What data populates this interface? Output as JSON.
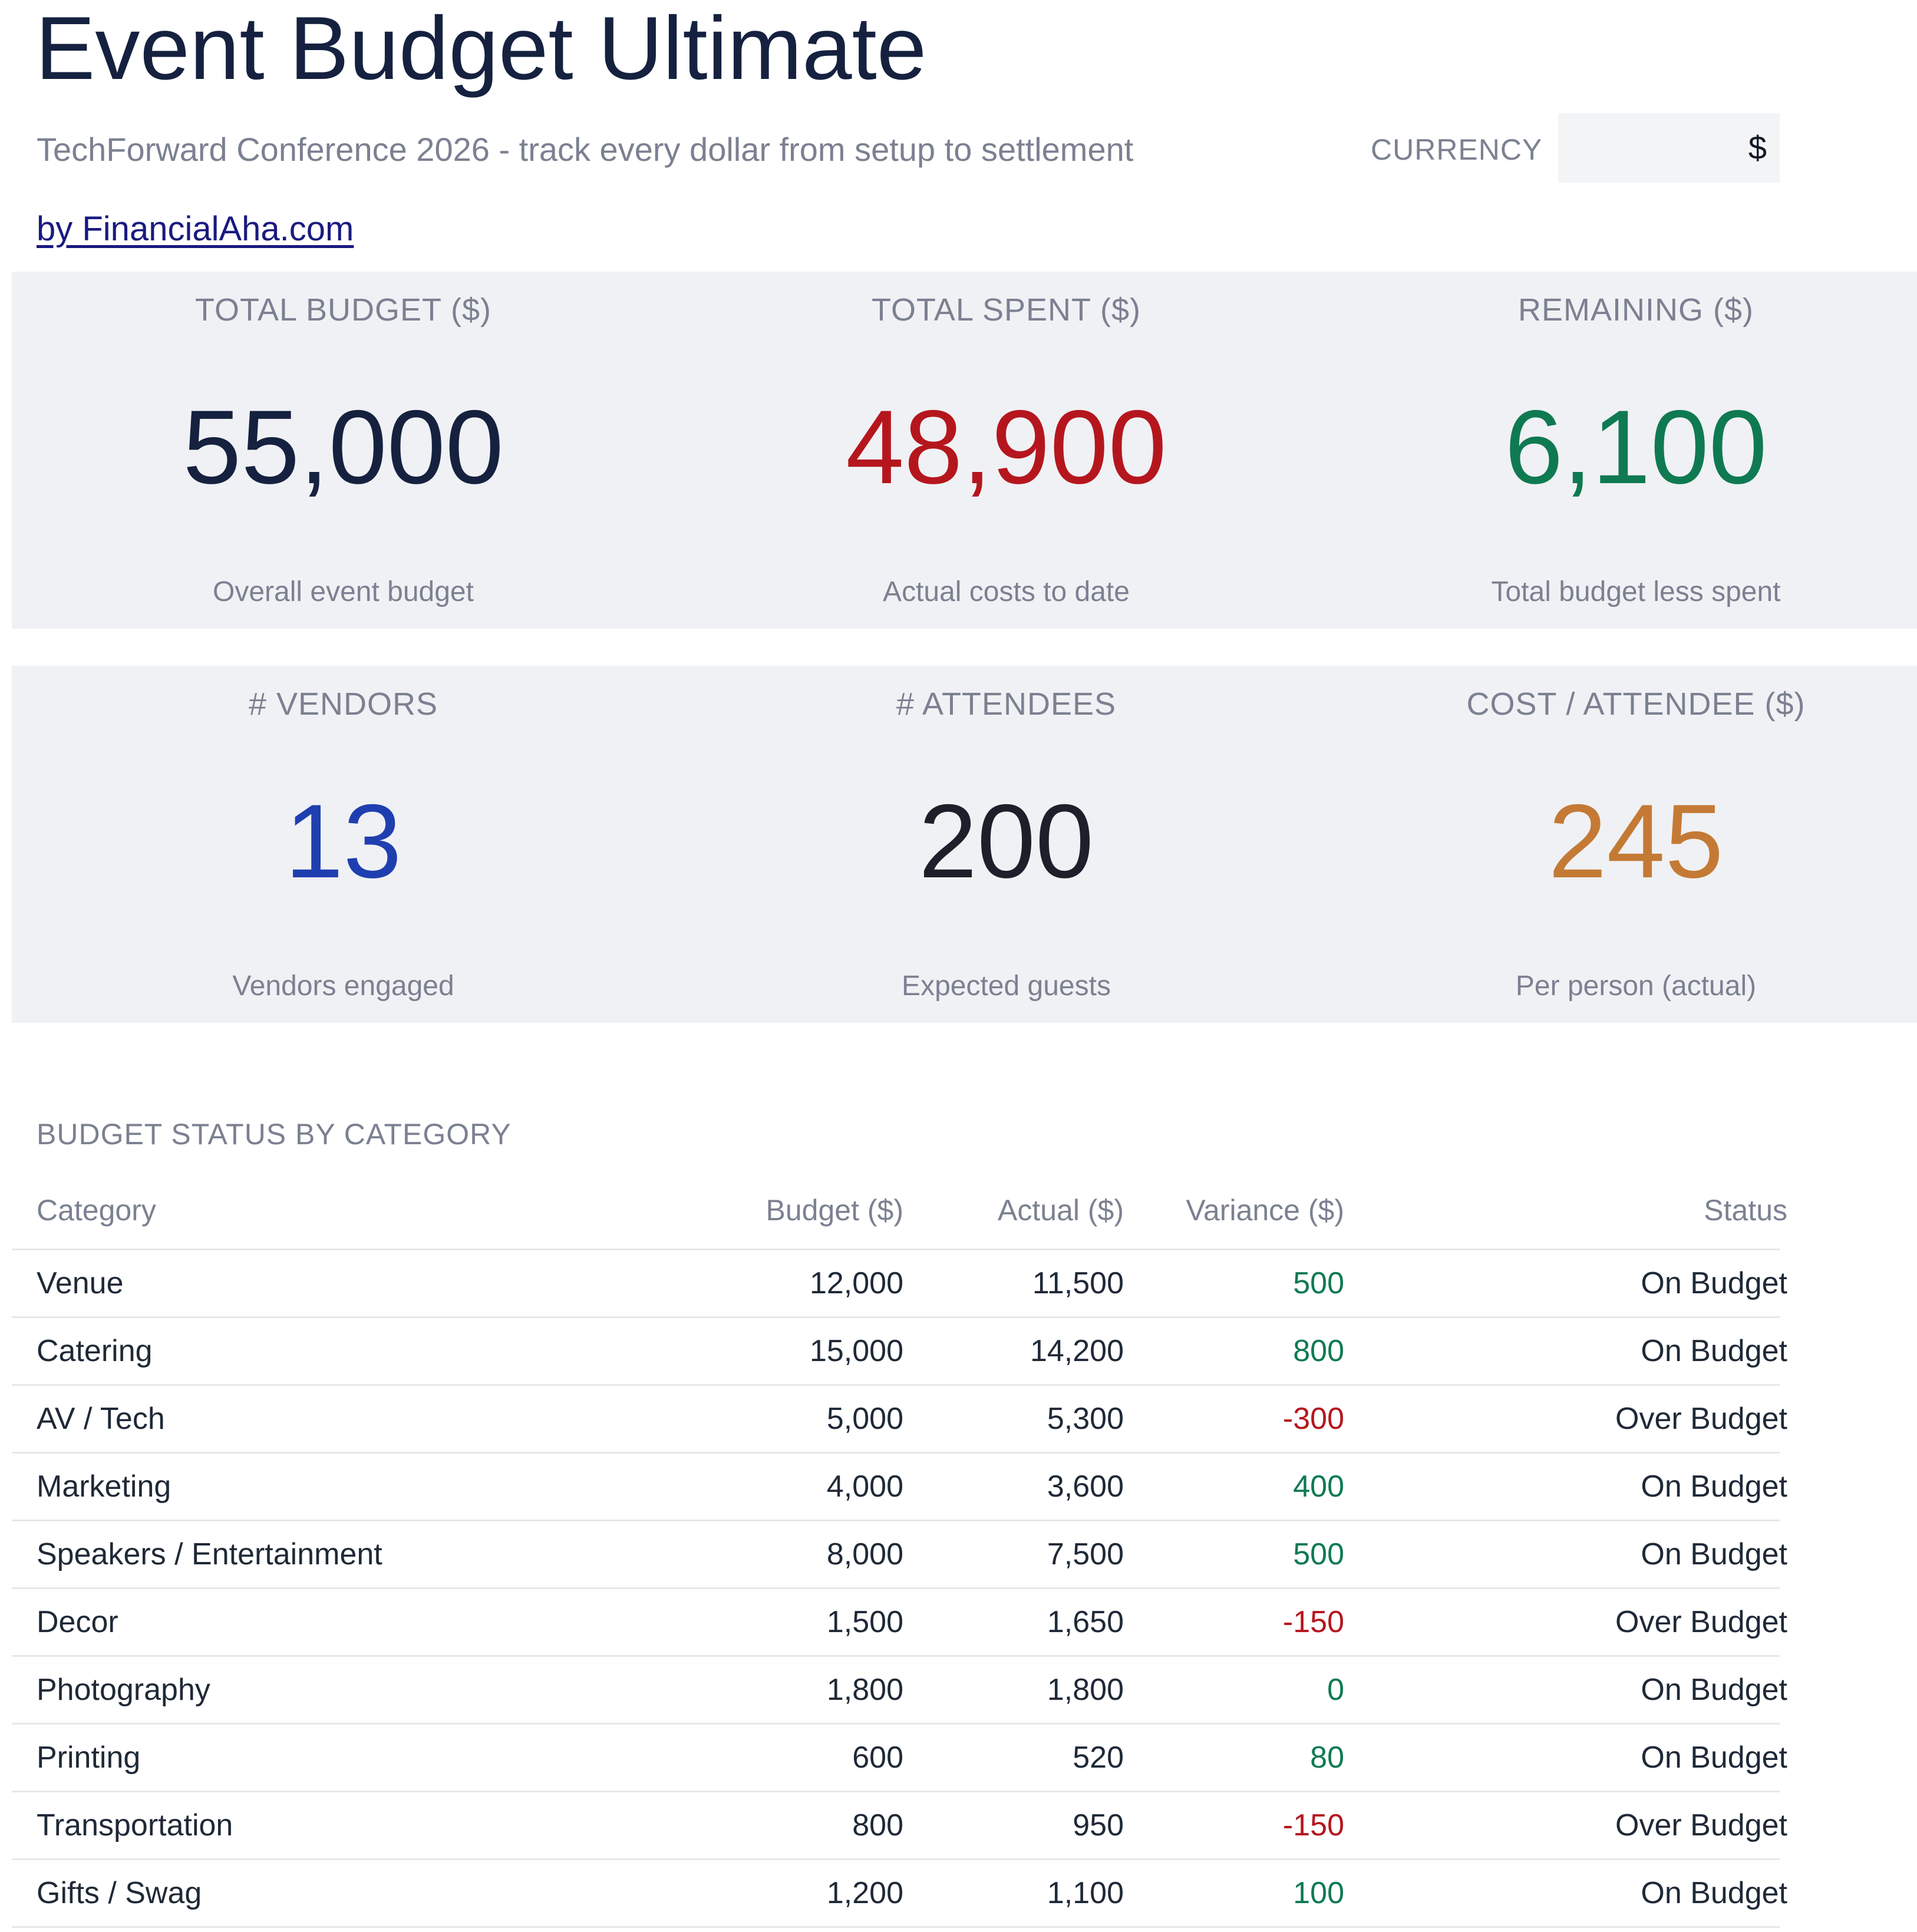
{
  "header": {
    "title": "Event Budget Ultimate",
    "subtitle": "TechForward Conference 2026 - track every dollar from setup to settlement",
    "currency_label": "CURRENCY",
    "currency_value": "$",
    "byline": "by FinancialAha.com"
  },
  "colors": {
    "title": "#15213f",
    "muted": "#7b8191",
    "panel_bg": "#f0f1f4",
    "positive": "#0f7a52",
    "negative": "#b5161e",
    "blue": "#1f3fb0",
    "amber": "#c47a35",
    "dark": "#1d1f2a"
  },
  "kpis_top": [
    {
      "label": "TOTAL BUDGET ($)",
      "value": "55,000",
      "sub": "Overall event budget"
    },
    {
      "label": "TOTAL SPENT ($)",
      "value": "48,900",
      "sub": "Actual costs to date"
    },
    {
      "label": "REMAINING ($)",
      "value": "6,100",
      "sub": "Total budget less spent"
    }
  ],
  "kpis_bottom": [
    {
      "label": "# VENDORS",
      "value": "13",
      "sub": "Vendors engaged"
    },
    {
      "label": "# ATTENDEES",
      "value": "200",
      "sub": "Expected guests"
    },
    {
      "label": "COST / ATTENDEE ($)",
      "value": "245",
      "sub": "Per person (actual)"
    }
  ],
  "budget_status": {
    "title": "BUDGET STATUS BY CATEGORY",
    "columns": [
      "Category",
      "Budget ($)",
      "Actual ($)",
      "Variance ($)",
      "Status"
    ],
    "rows": [
      {
        "category": "Venue",
        "budget": "12,000",
        "actual": "11,500",
        "variance": "500",
        "status": "On Budget"
      },
      {
        "category": "Catering",
        "budget": "15,000",
        "actual": "14,200",
        "variance": "800",
        "status": "On Budget"
      },
      {
        "category": "AV / Tech",
        "budget": "5,000",
        "actual": "5,300",
        "variance": "-300",
        "status": "Over Budget"
      },
      {
        "category": "Marketing",
        "budget": "4,000",
        "actual": "3,600",
        "variance": "400",
        "status": "On Budget"
      },
      {
        "category": "Speakers / Entertainment",
        "budget": "8,000",
        "actual": "7,500",
        "variance": "500",
        "status": "On Budget"
      },
      {
        "category": "Decor",
        "budget": "1,500",
        "actual": "1,650",
        "variance": "-150",
        "status": "Over Budget"
      },
      {
        "category": "Photography",
        "budget": "1,800",
        "actual": "1,800",
        "variance": "0",
        "status": "On Budget"
      },
      {
        "category": "Printing",
        "budget": "600",
        "actual": "520",
        "variance": "80",
        "status": "On Budget"
      },
      {
        "category": "Transportation",
        "budget": "800",
        "actual": "950",
        "variance": "-150",
        "status": "Over Budget"
      },
      {
        "category": "Gifts / Swag",
        "budget": "1,200",
        "actual": "1,100",
        "variance": "100",
        "status": "On Budget"
      }
    ]
  }
}
